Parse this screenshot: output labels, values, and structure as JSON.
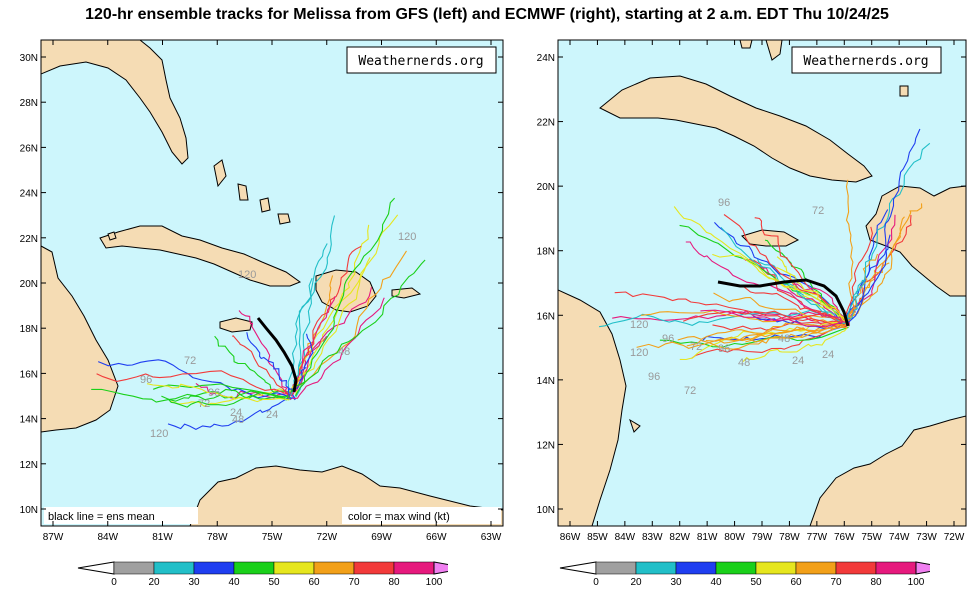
{
  "title": "120-hr ensemble tracks for Melissa from GFS (left) and ECMWF (right), starting at 2 a.m. EDT Thu 10/24/25",
  "brand": "Weathernerds.org",
  "colors": {
    "ocean": "#cdf6fc",
    "land": "#f5dcb4",
    "mean": "#000000"
  },
  "colorbar": {
    "ticks": [
      "0",
      "20",
      "30",
      "40",
      "50",
      "60",
      "70",
      "80",
      "100"
    ],
    "colors": [
      "#a0a0a0",
      "#22bfc8",
      "#1f3ef0",
      "#1ad01a",
      "#e6e61e",
      "#f2a019",
      "#f23a3a",
      "#e6197d"
    ],
    "left_end": "#ffffff",
    "right_end": "#f07ff0"
  },
  "left_panel": {
    "model": "GFS",
    "lat_ticks": [
      "30N",
      "28N",
      "26N",
      "24N",
      "22N",
      "20N",
      "18N",
      "16N",
      "14N",
      "12N",
      "10N"
    ],
    "lon_ticks": [
      "87W",
      "84W",
      "81W",
      "78W",
      "75W",
      "72W",
      "69W",
      "66W",
      "63W"
    ],
    "legend_left": "black line = ens mean",
    "legend_right": "color = max wind (kt)",
    "hour_labels": [
      "120",
      "96",
      "72",
      "48",
      "24",
      "120",
      "96",
      "72",
      "48",
      "24",
      "120"
    ]
  },
  "right_panel": {
    "model": "ECMWF",
    "lat_ticks": [
      "24N",
      "22N",
      "20N",
      "18N",
      "16N",
      "14N",
      "12N",
      "10N"
    ],
    "lon_ticks": [
      "86W",
      "85W",
      "84W",
      "83W",
      "82W",
      "81W",
      "80W",
      "79W",
      "78W",
      "77W",
      "76W",
      "75W",
      "74W",
      "73W",
      "72W"
    ],
    "hour_labels": [
      "96",
      "72",
      "120",
      "96",
      "72",
      "96",
      "48",
      "24",
      "96",
      "72",
      "48",
      "24",
      "120"
    ]
  }
}
